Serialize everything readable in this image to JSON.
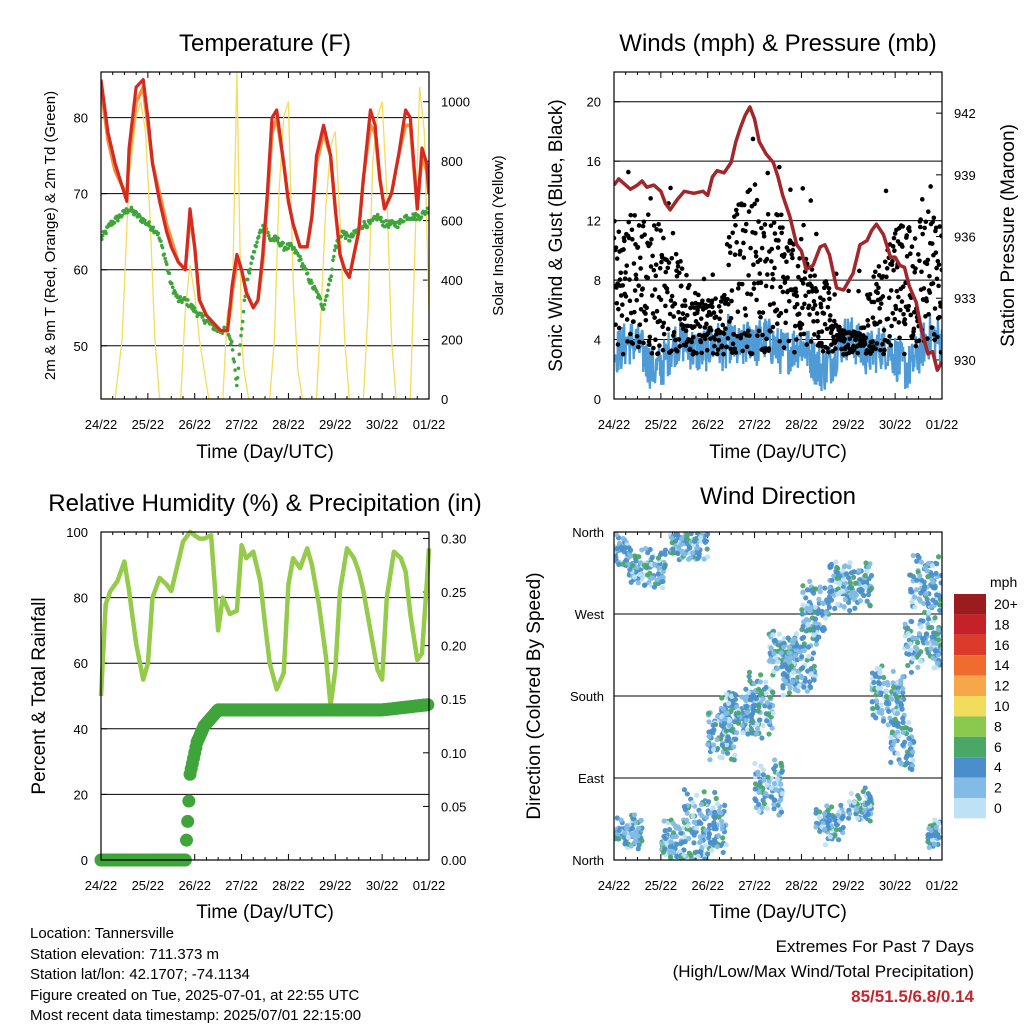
{
  "x_tick_labels": [
    "24/22",
    "25/22",
    "26/22",
    "27/22",
    "28/22",
    "29/22",
    "30/22",
    "01/22"
  ],
  "xlabel": "Time (Day/UTC)",
  "chart_data": [
    {
      "id": "temperature",
      "type": "line",
      "title": "Temperature (F)",
      "xlabel": "Time (Day/UTC)",
      "ylabel": "2m & 9m T (Red, Orange) & 2m Td (Green)",
      "ylabel_right": "Solar Insolation (Yellow)",
      "ylim": [
        43,
        86
      ],
      "yticks": [
        50,
        60,
        70,
        80
      ],
      "ylim_right": [
        0,
        1100
      ],
      "yticks_right": [
        0,
        200,
        400,
        600,
        800,
        1000
      ],
      "colors": {
        "t2m": "#d42a22",
        "t9m": "#f4903a",
        "td": "#3fa53b",
        "solar": "#f6dc5c"
      },
      "series": [
        {
          "name": "2m T",
          "axis": "left",
          "x": [
            0,
            0.15,
            0.3,
            0.45,
            0.55,
            0.6,
            0.75,
            0.9,
            1,
            1.1,
            1.25,
            1.4,
            1.5,
            1.65,
            1.8,
            1.9,
            2.0,
            2.1,
            2.25,
            2.4,
            2.55,
            2.7,
            2.8,
            2.9,
            3.0,
            3.1,
            3.25,
            3.35,
            3.45,
            3.55,
            3.65,
            3.75,
            3.9,
            4.0,
            4.1,
            4.25,
            4.4,
            4.5,
            4.6,
            4.75,
            4.9,
            5.0,
            5.1,
            5.2,
            5.3,
            5.5,
            5.6,
            5.75,
            5.85,
            5.95,
            6.05,
            6.2,
            6.35,
            6.5,
            6.6,
            6.75,
            6.85,
            6.95,
            7.0
          ],
          "y": [
            85,
            78,
            74,
            71,
            69,
            76,
            84,
            85,
            80,
            74,
            69,
            65,
            63,
            61,
            60,
            68,
            63,
            56,
            54,
            53,
            52,
            52,
            58,
            62,
            60,
            57,
            55,
            56,
            62,
            70,
            80,
            81,
            74,
            69,
            66,
            63,
            63,
            67,
            75,
            79,
            75,
            68,
            62,
            60,
            59,
            65,
            72,
            81,
            79,
            72,
            68,
            70,
            75,
            81,
            80,
            68,
            76,
            74,
            70
          ]
        },
        {
          "name": "9m T",
          "axis": "left",
          "x": [
            0,
            0.15,
            0.3,
            0.45,
            0.55,
            0.6,
            0.75,
            0.9,
            1,
            1.1,
            1.25,
            1.4,
            1.5,
            1.65,
            1.8,
            1.9,
            2.0,
            2.1,
            2.25,
            2.4,
            2.55,
            2.7,
            2.8,
            2.9,
            3.0,
            3.1,
            3.25,
            3.35,
            3.45,
            3.55,
            3.65,
            3.75,
            3.9,
            4.0,
            4.1,
            4.25,
            4.4,
            4.5,
            4.6,
            4.75,
            4.9,
            5.0,
            5.1,
            5.2,
            5.3,
            5.5,
            5.6,
            5.75,
            5.85,
            5.95,
            6.05,
            6.2,
            6.35,
            6.5,
            6.6,
            6.75,
            6.85,
            6.95,
            7.0
          ],
          "y": [
            84,
            77,
            73,
            71,
            70,
            75,
            82,
            84,
            79,
            74,
            70,
            66,
            64,
            61,
            60,
            67,
            63,
            56,
            54,
            53,
            52,
            52,
            57,
            61,
            60,
            57,
            55,
            56,
            61,
            69,
            78,
            80,
            74,
            69,
            66,
            63,
            63,
            67,
            74,
            78,
            75,
            68,
            62,
            60,
            59,
            65,
            72,
            79,
            78,
            72,
            68,
            70,
            75,
            79,
            79,
            68,
            75,
            73,
            70
          ]
        },
        {
          "name": "2m Td",
          "axis": "left",
          "x": [
            0,
            0.2,
            0.4,
            0.6,
            0.8,
            1.0,
            1.2,
            1.35,
            1.5,
            1.65,
            1.8,
            1.95,
            2.1,
            2.3,
            2.5,
            2.7,
            2.8,
            2.9,
            3.0,
            3.1,
            3.25,
            3.4,
            3.5,
            3.6,
            3.75,
            3.9,
            4.05,
            4.2,
            4.35,
            4.5,
            4.6,
            4.75,
            4.9,
            5.0,
            5.15,
            5.3,
            5.45,
            5.6,
            5.75,
            5.9,
            6.05,
            6.2,
            6.35,
            6.5,
            6.65,
            6.8,
            7.0
          ],
          "y": [
            64,
            66,
            67,
            68,
            67,
            66,
            65,
            62,
            58,
            56,
            56,
            55,
            54,
            53,
            52,
            52,
            50,
            45,
            52,
            58,
            62,
            65,
            66,
            64,
            64,
            63,
            63,
            62,
            60,
            58,
            57,
            55,
            59,
            63,
            65,
            64,
            65,
            66,
            66,
            67,
            66,
            66,
            66,
            67,
            67,
            67,
            68
          ]
        },
        {
          "name": "Solar Insolation",
          "axis": "right",
          "x": [
            0,
            0.2,
            0.3,
            0.45,
            0.6,
            0.75,
            0.85,
            0.95,
            1.05,
            1.15,
            1.25,
            1.35,
            1.6,
            1.7,
            1.8,
            1.9,
            2.0,
            2.1,
            2.2,
            2.3,
            2.6,
            2.7,
            2.8,
            2.9,
            3.0,
            3.05,
            3.15,
            3.3,
            3.6,
            3.7,
            3.8,
            3.9,
            4.0,
            4.1,
            4.2,
            4.3,
            4.6,
            4.7,
            4.8,
            4.9,
            5.0,
            5.1,
            5.2,
            5.3,
            5.6,
            5.7,
            5.8,
            5.9,
            6.0,
            6.1,
            6.2,
            6.3,
            6.6,
            6.7,
            6.8,
            6.9,
            7.0
          ],
          "y": [
            0,
            0,
            0,
            200,
            750,
            950,
            1000,
            900,
            600,
            200,
            0,
            0,
            0,
            0,
            300,
            450,
            350,
            200,
            100,
            0,
            0,
            300,
            300,
            1100,
            200,
            100,
            0,
            0,
            0,
            200,
            700,
            950,
            1000,
            400,
            100,
            0,
            0,
            300,
            650,
            850,
            900,
            600,
            200,
            0,
            0,
            300,
            800,
            950,
            1000,
            700,
            200,
            0,
            0,
            500,
            1050,
            900,
            300
          ]
        }
      ]
    },
    {
      "id": "winds",
      "type": "scatter",
      "title": "Winds (mph) & Pressure (mb)",
      "xlabel": "Time (Day/UTC)",
      "ylabel": "Sonic Wind & Gust (Blue, Black)",
      "ylabel_right": "Station Pressure (Maroon)",
      "ylim": [
        0,
        22
      ],
      "yticks": [
        0,
        4,
        8,
        12,
        16,
        20
      ],
      "ylim_right": [
        928.1,
        944
      ],
      "yticks_right": [
        930,
        933,
        936,
        939,
        942
      ],
      "colors": {
        "wind": "#4e9bd6",
        "gust": "#000000",
        "pressure": "#a3262a"
      },
      "series": [
        {
          "name": "Pressure",
          "axis": "right",
          "x": [
            0,
            0.1,
            0.2,
            0.35,
            0.5,
            0.6,
            0.7,
            0.85,
            1.0,
            1.1,
            1.2,
            1.35,
            1.5,
            1.7,
            1.9,
            2.0,
            2.1,
            2.2,
            2.35,
            2.5,
            2.6,
            2.7,
            2.8,
            2.9,
            3.0,
            3.1,
            3.25,
            3.4,
            3.5,
            3.6,
            3.75,
            3.9,
            4.0,
            4.1,
            4.25,
            4.4,
            4.5,
            4.6,
            4.75,
            4.9,
            5.1,
            5.25,
            5.4,
            5.5,
            5.6,
            5.75,
            5.9,
            6.0,
            6.1,
            6.2,
            6.3,
            6.45,
            6.55,
            6.7,
            6.8,
            6.9,
            7.0
          ],
          "y": [
            938.5,
            938.8,
            938.6,
            938.3,
            938.5,
            938.7,
            938.4,
            938.5,
            938.2,
            937.6,
            937.3,
            937.8,
            938.2,
            938.1,
            938.2,
            938.0,
            938.9,
            939.2,
            939.1,
            939.6,
            940.6,
            941.3,
            941.9,
            942.3,
            941.7,
            940.6,
            940.0,
            939.6,
            938.9,
            938.0,
            937.0,
            935.6,
            935.3,
            934.4,
            934.6,
            935.5,
            935.6,
            935.1,
            933.5,
            933.4,
            934.2,
            935.6,
            935.8,
            936.3,
            936.6,
            936.1,
            935.0,
            935.0,
            934.6,
            934.5,
            933.6,
            932.8,
            931.6,
            930.3,
            930.4,
            929.5,
            929.9
          ]
        }
      ]
    },
    {
      "id": "humidity",
      "type": "line",
      "title": "Relative Humidity (%) & Precipitation (in)",
      "xlabel": "Time (Day/UTC)",
      "ylabel": "Percent & Total Rainfall",
      "ylim": [
        0,
        100
      ],
      "yticks": [
        0,
        20,
        40,
        60,
        80,
        100
      ],
      "ylim_right": [
        0,
        0.306
      ],
      "yticks_right": [
        "0.00",
        "0.05",
        "0.10",
        "0.15",
        "0.20",
        "0.25",
        "0.30"
      ],
      "colors": {
        "rh": "#95cb4b",
        "precip": "#3fa53b"
      },
      "series": [
        {
          "name": "RH",
          "axis": "left",
          "x": [
            0,
            0.1,
            0.2,
            0.35,
            0.5,
            0.6,
            0.75,
            0.9,
            1.0,
            1.1,
            1.25,
            1.4,
            1.5,
            1.6,
            1.75,
            1.9,
            2.0,
            2.1,
            2.2,
            2.35,
            2.5,
            2.6,
            2.75,
            2.9,
            3.0,
            3.1,
            3.25,
            3.4,
            3.5,
            3.6,
            3.75,
            3.9,
            4.0,
            4.1,
            4.25,
            4.4,
            4.5,
            4.65,
            4.8,
            4.9,
            5.0,
            5.1,
            5.25,
            5.4,
            5.5,
            5.6,
            5.75,
            5.9,
            6.0,
            6.1,
            6.25,
            6.4,
            6.5,
            6.6,
            6.75,
            6.85,
            6.95,
            7.0
          ],
          "y": [
            50,
            78,
            82,
            85,
            91,
            82,
            66,
            55,
            60,
            80,
            86,
            84,
            82,
            88,
            97,
            100,
            99,
            98,
            98,
            99,
            70,
            80,
            75,
            76,
            96,
            92,
            94,
            85,
            72,
            60,
            52,
            57,
            84,
            92,
            89,
            95,
            90,
            78,
            62,
            47,
            58,
            82,
            95,
            92,
            88,
            82,
            70,
            58,
            55,
            80,
            94,
            92,
            88,
            75,
            61,
            63,
            84,
            95
          ]
        },
        {
          "name": "Total Precipitation",
          "axis": "right",
          "x": [
            0,
            1.8,
            1.82,
            1.87,
            1.9,
            1.95,
            2.0,
            2.05,
            2.1,
            2.15,
            2.2,
            2.3,
            2.4,
            2.5,
            3.0,
            4.0,
            5.0,
            6.0,
            7.0
          ],
          "y": [
            0,
            0,
            0.015,
            0.05,
            0.08,
            0.09,
            0.1,
            0.11,
            0.115,
            0.12,
            0.125,
            0.13,
            0.135,
            0.14,
            0.14,
            0.14,
            0.14,
            0.14,
            0.145
          ]
        }
      ]
    },
    {
      "id": "wind_direction",
      "type": "scatter",
      "title": "Wind Direction",
      "xlabel": "Time (Day/UTC)",
      "ylabel": "Direction (Colored By Speed)",
      "yticks": [
        "North",
        "East",
        "South",
        "West",
        "North"
      ],
      "ylim": [
        0,
        360
      ],
      "legend": {
        "title": "mph",
        "placement": "right",
        "labels": [
          "20+",
          "18",
          "16",
          "14",
          "12",
          "10",
          "8",
          "6",
          "4",
          "2",
          "0"
        ],
        "colors": [
          "#9b1c1f",
          "#c42228",
          "#dc3a2a",
          "#f06b2e",
          "#f8a64a",
          "#f2dc5c",
          "#8bc84e",
          "#4aa866",
          "#4a8fca",
          "#82bbe6",
          "#bfe1f6"
        ]
      }
    }
  ],
  "info": {
    "location": "Location: Tannersville",
    "elevation": "Station elevation: 711.373 m",
    "latlon": "Station lat/lon: 42.1707; -74.1134",
    "created": "Figure created on Tue, 2025-07-01, at 22:55 UTC",
    "recent": "Most recent data timestamp: 2025/07/01 22:15:00"
  },
  "extremes": {
    "title": "Extremes For Past 7 Days",
    "subtitle": "(High/Low/Max Wind/Total Precipitation)",
    "values": "85/51.5/6.8/0.14"
  }
}
